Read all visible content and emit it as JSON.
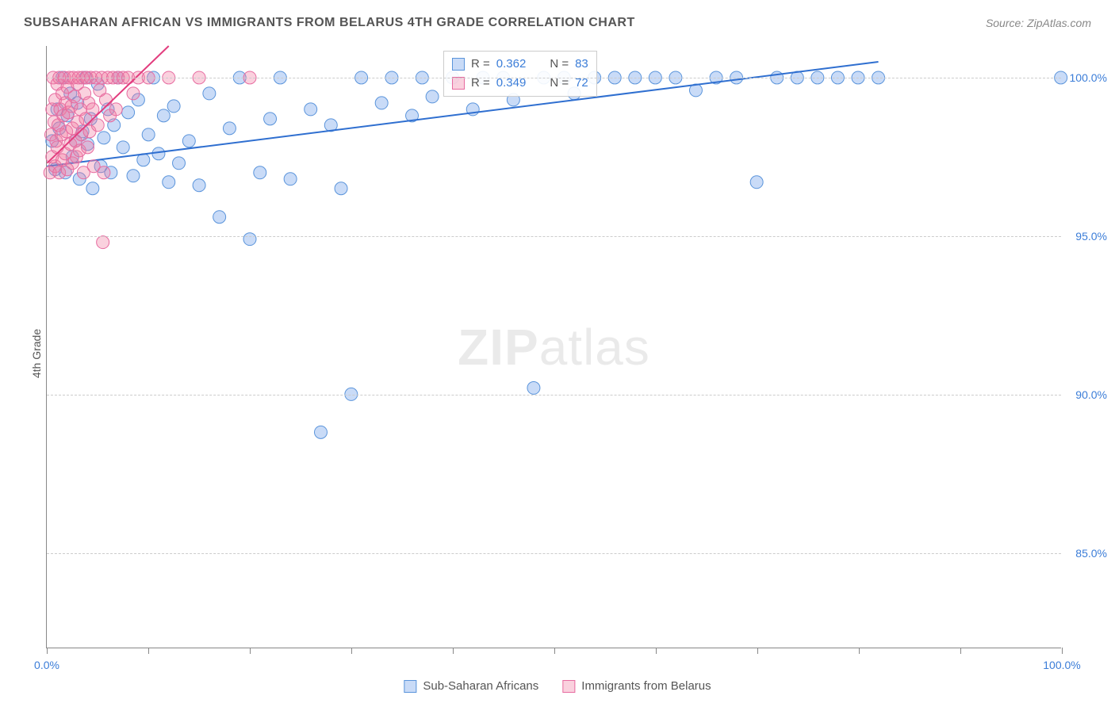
{
  "title": "SUBSAHARAN AFRICAN VS IMMIGRANTS FROM BELARUS 4TH GRADE CORRELATION CHART",
  "source": "Source: ZipAtlas.com",
  "y_axis_label": "4th Grade",
  "watermark_bold": "ZIP",
  "watermark_light": "atlas",
  "chart": {
    "type": "scatter",
    "xlim": [
      0,
      100
    ],
    "ylim": [
      82,
      101
    ],
    "x_ticks": [
      0,
      10,
      20,
      30,
      40,
      50,
      60,
      70,
      80,
      90,
      100
    ],
    "x_tick_labels": {
      "0": "0.0%",
      "100": "100.0%"
    },
    "y_ticks": [
      85,
      90,
      95,
      100
    ],
    "y_tick_labels": {
      "85": "85.0%",
      "90": "90.0%",
      "95": "95.0%",
      "100": "100.0%"
    },
    "grid_color": "#cccccc",
    "axis_color": "#888888",
    "background_color": "#ffffff",
    "series": [
      {
        "name": "Sub-Saharan Africans",
        "color_fill": "rgba(99,153,233,0.35)",
        "color_stroke": "#5a94db",
        "marker_radius": 8,
        "trend": {
          "x1": 0,
          "y1": 97.2,
          "x2": 82,
          "y2": 100.5,
          "color": "#2f6fd0",
          "width": 2
        },
        "R": "0.362",
        "N": "83",
        "points": [
          [
            0.5,
            98.0
          ],
          [
            0.8,
            97.1
          ],
          [
            1.0,
            99.0
          ],
          [
            1.2,
            98.4
          ],
          [
            1.5,
            100.0
          ],
          [
            1.8,
            97.0
          ],
          [
            2.0,
            98.8
          ],
          [
            2.3,
            99.5
          ],
          [
            2.5,
            97.5
          ],
          [
            2.8,
            98.0
          ],
          [
            3.0,
            99.2
          ],
          [
            3.2,
            96.8
          ],
          [
            3.5,
            98.3
          ],
          [
            3.8,
            100.0
          ],
          [
            4.0,
            97.9
          ],
          [
            4.3,
            98.7
          ],
          [
            4.5,
            96.5
          ],
          [
            5.0,
            99.8
          ],
          [
            5.3,
            97.2
          ],
          [
            5.6,
            98.1
          ],
          [
            6.0,
            99.0
          ],
          [
            6.3,
            97.0
          ],
          [
            6.6,
            98.5
          ],
          [
            7.0,
            100.0
          ],
          [
            7.5,
            97.8
          ],
          [
            8.0,
            98.9
          ],
          [
            8.5,
            96.9
          ],
          [
            9.0,
            99.3
          ],
          [
            9.5,
            97.4
          ],
          [
            10.0,
            98.2
          ],
          [
            10.5,
            100.0
          ],
          [
            11.0,
            97.6
          ],
          [
            11.5,
            98.8
          ],
          [
            12.0,
            96.7
          ],
          [
            12.5,
            99.1
          ],
          [
            13.0,
            97.3
          ],
          [
            14.0,
            98.0
          ],
          [
            15.0,
            96.6
          ],
          [
            16.0,
            99.5
          ],
          [
            17.0,
            95.6
          ],
          [
            18.0,
            98.4
          ],
          [
            19.0,
            100.0
          ],
          [
            20.0,
            94.9
          ],
          [
            21.0,
            97.0
          ],
          [
            22.0,
            98.7
          ],
          [
            23.0,
            100.0
          ],
          [
            24.0,
            96.8
          ],
          [
            26.0,
            99.0
          ],
          [
            27.0,
            88.8
          ],
          [
            28.0,
            98.5
          ],
          [
            29.0,
            96.5
          ],
          [
            30.0,
            90.0
          ],
          [
            31.0,
            100.0
          ],
          [
            33.0,
            99.2
          ],
          [
            34.0,
            100.0
          ],
          [
            36.0,
            98.8
          ],
          [
            37.0,
            100.0
          ],
          [
            38.0,
            99.4
          ],
          [
            40.0,
            100.0
          ],
          [
            42.0,
            99.0
          ],
          [
            43.0,
            100.0
          ],
          [
            45.0,
            100.0
          ],
          [
            46.0,
            99.3
          ],
          [
            48.0,
            90.2
          ],
          [
            49.0,
            100.0
          ],
          [
            51.0,
            100.0
          ],
          [
            52.0,
            99.5
          ],
          [
            54.0,
            100.0
          ],
          [
            56.0,
            100.0
          ],
          [
            58.0,
            100.0
          ],
          [
            60.0,
            100.0
          ],
          [
            62.0,
            100.0
          ],
          [
            64.0,
            99.6
          ],
          [
            66.0,
            100.0
          ],
          [
            68.0,
            100.0
          ],
          [
            70.0,
            96.7
          ],
          [
            72.0,
            100.0
          ],
          [
            74.0,
            100.0
          ],
          [
            76.0,
            100.0
          ],
          [
            78.0,
            100.0
          ],
          [
            80.0,
            100.0
          ],
          [
            82.0,
            100.0
          ],
          [
            100.0,
            100.0
          ]
        ]
      },
      {
        "name": "Immigrants from Belarus",
        "color_fill": "rgba(242,122,161,0.35)",
        "color_stroke": "#e76ba0",
        "marker_radius": 8,
        "trend": {
          "x1": 0,
          "y1": 97.3,
          "x2": 12,
          "y2": 101.0,
          "color": "#e23d7e",
          "width": 2
        },
        "R": "0.349",
        "N": "72",
        "points": [
          [
            0.3,
            97.0
          ],
          [
            0.4,
            98.2
          ],
          [
            0.5,
            99.0
          ],
          [
            0.5,
            97.5
          ],
          [
            0.6,
            100.0
          ],
          [
            0.7,
            98.6
          ],
          [
            0.8,
            99.3
          ],
          [
            0.8,
            97.2
          ],
          [
            0.9,
            98.0
          ],
          [
            1.0,
            99.8
          ],
          [
            1.0,
            97.8
          ],
          [
            1.1,
            98.5
          ],
          [
            1.2,
            100.0
          ],
          [
            1.2,
            97.0
          ],
          [
            1.3,
            99.0
          ],
          [
            1.4,
            98.2
          ],
          [
            1.5,
            97.4
          ],
          [
            1.5,
            99.5
          ],
          [
            1.6,
            98.8
          ],
          [
            1.7,
            100.0
          ],
          [
            1.8,
            97.6
          ],
          [
            1.8,
            99.2
          ],
          [
            1.9,
            98.3
          ],
          [
            2.0,
            97.1
          ],
          [
            2.0,
            99.7
          ],
          [
            2.1,
            98.9
          ],
          [
            2.2,
            100.0
          ],
          [
            2.3,
            97.9
          ],
          [
            2.4,
            99.1
          ],
          [
            2.5,
            98.4
          ],
          [
            2.5,
            97.3
          ],
          [
            2.6,
            100.0
          ],
          [
            2.7,
            99.4
          ],
          [
            2.8,
            98.0
          ],
          [
            2.9,
            97.5
          ],
          [
            3.0,
            99.8
          ],
          [
            3.0,
            98.6
          ],
          [
            3.1,
            100.0
          ],
          [
            3.2,
            97.7
          ],
          [
            3.3,
            99.0
          ],
          [
            3.4,
            98.2
          ],
          [
            3.5,
            100.0
          ],
          [
            3.6,
            97.0
          ],
          [
            3.7,
            99.5
          ],
          [
            3.8,
            98.7
          ],
          [
            3.9,
            100.0
          ],
          [
            4.0,
            97.8
          ],
          [
            4.1,
            99.2
          ],
          [
            4.2,
            98.3
          ],
          [
            4.3,
            100.0
          ],
          [
            4.5,
            99.0
          ],
          [
            4.6,
            97.2
          ],
          [
            4.8,
            100.0
          ],
          [
            5.0,
            98.5
          ],
          [
            5.2,
            99.6
          ],
          [
            5.4,
            100.0
          ],
          [
            5.6,
            97.0
          ],
          [
            5.8,
            99.3
          ],
          [
            6.0,
            100.0
          ],
          [
            6.2,
            98.8
          ],
          [
            6.5,
            100.0
          ],
          [
            6.8,
            99.0
          ],
          [
            7.0,
            100.0
          ],
          [
            5.5,
            94.8
          ],
          [
            7.5,
            100.0
          ],
          [
            8.0,
            100.0
          ],
          [
            8.5,
            99.5
          ],
          [
            9.0,
            100.0
          ],
          [
            10.0,
            100.0
          ],
          [
            12.0,
            100.0
          ],
          [
            15.0,
            100.0
          ],
          [
            20.0,
            100.0
          ]
        ]
      }
    ]
  },
  "legend_box": {
    "rows": [
      {
        "swatch_fill": "rgba(99,153,233,0.35)",
        "swatch_stroke": "#5a94db",
        "r_label": "R =",
        "r_val": "0.362",
        "n_label": "N =",
        "n_val": "83"
      },
      {
        "swatch_fill": "rgba(242,122,161,0.35)",
        "swatch_stroke": "#e76ba0",
        "r_label": "R =",
        "r_val": "0.349",
        "n_label": "N =",
        "n_val": "72"
      }
    ]
  },
  "bottom_legend": [
    {
      "swatch_fill": "rgba(99,153,233,0.35)",
      "swatch_stroke": "#5a94db",
      "label": "Sub-Saharan Africans"
    },
    {
      "swatch_fill": "rgba(242,122,161,0.35)",
      "swatch_stroke": "#e76ba0",
      "label": "Immigrants from Belarus"
    }
  ]
}
